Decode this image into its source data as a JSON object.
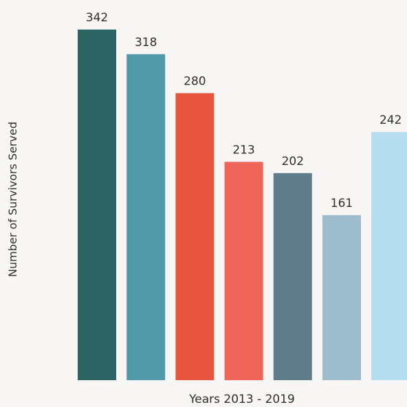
{
  "chart_data": {
    "type": "bar",
    "xlabel": "Years 2013 - 2019",
    "ylabel": "Number of Survivors Served",
    "ylim": [
      0,
      342
    ],
    "grid": false,
    "values": [
      342,
      318,
      280,
      213,
      202,
      161,
      242
    ],
    "value_labels": [
      "342",
      "318",
      "280",
      "213",
      "202",
      "161",
      "242"
    ],
    "colors": [
      "#2b6463",
      "#4f9aa6",
      "#e8553e",
      "#f0655a",
      "#5e7c8a",
      "#9dbdcc",
      "#b5dcef"
    ]
  }
}
